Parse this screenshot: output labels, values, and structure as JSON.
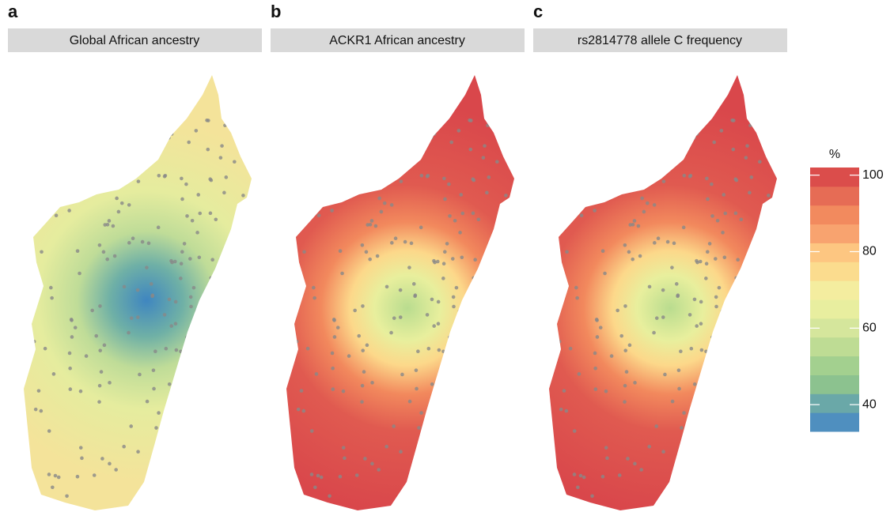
{
  "panels": [
    {
      "letter": "a",
      "title": "Global African ancestry"
    },
    {
      "letter": "b",
      "title": "ACKR1 African ancestry"
    },
    {
      "letter": "c",
      "title": "rs2814778 allele C frequency"
    }
  ],
  "legend": {
    "title": "%",
    "range": [
      33,
      102
    ],
    "ticks": [
      40,
      60,
      80,
      100
    ],
    "colors": [
      "#4f8fbf",
      "#6aa8a8",
      "#8cc28f",
      "#a3d08f",
      "#bedc94",
      "#d5e69c",
      "#e8ee9f",
      "#f4ed9f",
      "#fbdc8e",
      "#fdc681",
      "#f8a36f",
      "#f28a5e",
      "#e66c55",
      "#db4d4b"
    ]
  }
}
